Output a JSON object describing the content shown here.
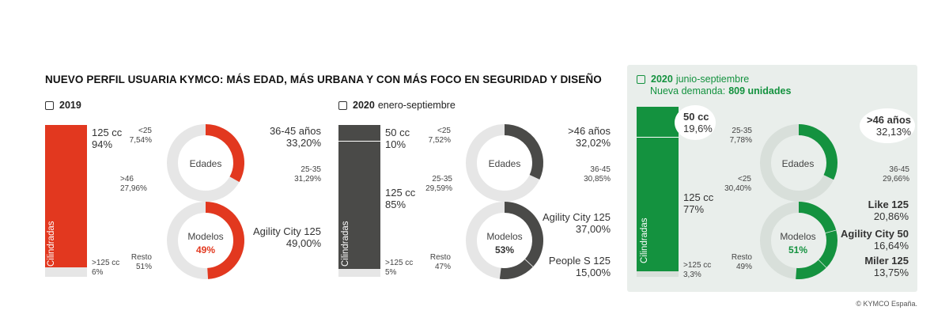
{
  "title": "NUEVO PERFIL USUARIA KYMCO: MÁS EDAD, MÁS URBANA Y CON MÁS FOCO EN SEGURIDAD Y DISEÑO",
  "source": "© KYMCO España.",
  "colors": {
    "p2019": "#e2381f",
    "p2020": "#4a4a48",
    "pnew": "#14923f",
    "track": "#e6e6e6",
    "trackNew": "#d8dfda"
  },
  "panels": [
    {
      "id": "p2019",
      "header_bold": "2019",
      "header_rest": "",
      "cilindradas_label": "Cilindradas",
      "cil": {
        "top_name": "125 cc",
        "top_pct": "94%",
        "top_value": 94,
        "bottom_name": ">125 cc",
        "bottom_pct": "6%",
        "bottom_value": 6
      },
      "edades": {
        "center": "Edades",
        "labels": [
          {
            "name": "<25",
            "pct": "7,54%"
          },
          {
            "name": "36-45 años",
            "pct": "33,20%"
          },
          {
            "name": ">46",
            "pct": "27,96%"
          },
          {
            "name": "25-35",
            "pct": "31,29%"
          }
        ],
        "highlight": 33.2
      },
      "modelos": {
        "center": "Modelos",
        "center_pct": "49%",
        "labels": [
          {
            "name": "Agility City 125",
            "pct": "49,00%"
          },
          {
            "name": "Resto",
            "pct": "51%"
          }
        ],
        "highlight": 49.0
      }
    },
    {
      "id": "p2020",
      "header_bold": "2020",
      "header_rest": "enero-septiembre",
      "cilindradas_label": "Cilindradas",
      "cil": {
        "top_name": "50 cc",
        "top_pct": "10%",
        "top_value": 10,
        "mid_name": "125 cc",
        "mid_pct": "85%",
        "mid_value": 85,
        "bottom_name": ">125 cc",
        "bottom_pct": "5%",
        "bottom_value": 5
      },
      "edades": {
        "center": "Edades",
        "labels": [
          {
            "name": "<25",
            "pct": "7,52%"
          },
          {
            "name": ">46 años",
            "pct": "32,02%"
          },
          {
            "name": "25-35",
            "pct": "29,59%"
          },
          {
            "name": "36-45",
            "pct": "30,85%"
          }
        ],
        "highlight": 32.02
      },
      "modelos": {
        "center": "Modelos",
        "center_pct": "53%",
        "labels": [
          {
            "name": "Agility City 125",
            "pct": "37,00%"
          },
          {
            "name": "People S 125",
            "pct": "15,00%"
          },
          {
            "name": "Resto",
            "pct": "47%"
          }
        ],
        "highlight": [
          37.0,
          15.0
        ]
      }
    },
    {
      "id": "pnew",
      "header_bold": "2020",
      "header_rest": "junio-septiembre",
      "header2_text": "Nueva demanda:",
      "header2_bold": "809 unidades",
      "cilindradas_label": "Cilindradas",
      "cil": {
        "top_name": "50 cc",
        "top_pct": "19,6%",
        "top_value": 19.6,
        "mid_name": "125 cc",
        "mid_pct": "77%",
        "mid_value": 77,
        "bottom_name": ">125 cc",
        "bottom_pct": "3,3%",
        "bottom_value": 3.3
      },
      "edades": {
        "center": "Edades",
        "labels": [
          {
            "name": "25-35",
            "pct": "7,78%"
          },
          {
            "name": ">46 años",
            "pct": "32,13%"
          },
          {
            "name": "<25",
            "pct": "30,40%"
          },
          {
            "name": "36-45",
            "pct": "29,66%"
          }
        ],
        "highlight": 32.13
      },
      "modelos": {
        "center": "Modelos",
        "center_pct": "51%",
        "labels": [
          {
            "name": "Like 125",
            "pct": "20,86%"
          },
          {
            "name": "Agility City 50",
            "pct": "16,64%"
          },
          {
            "name": "Miler 125",
            "pct": "13,75%"
          },
          {
            "name": "Resto",
            "pct": "49%"
          }
        ],
        "highlight": [
          20.86,
          16.64,
          13.75
        ]
      }
    }
  ],
  "chart_data": [
    {
      "type": "bar",
      "title": "2019 Cilindradas",
      "categories": [
        "125 cc",
        ">125 cc"
      ],
      "values": [
        94,
        6
      ]
    },
    {
      "type": "pie",
      "title": "2019 Edades",
      "categories": [
        "<25",
        "25-35",
        "36-45 años",
        ">46"
      ],
      "values": [
        7.54,
        31.29,
        33.2,
        27.96
      ]
    },
    {
      "type": "pie",
      "title": "2019 Modelos",
      "categories": [
        "Agility City 125",
        "Resto"
      ],
      "values": [
        49.0,
        51
      ]
    },
    {
      "type": "bar",
      "title": "2020 enero-septiembre Cilindradas",
      "categories": [
        "50 cc",
        "125 cc",
        ">125 cc"
      ],
      "values": [
        10,
        85,
        5
      ]
    },
    {
      "type": "pie",
      "title": "2020 enero-septiembre Edades",
      "categories": [
        "<25",
        "25-35",
        "36-45",
        ">46 años"
      ],
      "values": [
        7.52,
        29.59,
        30.85,
        32.02
      ]
    },
    {
      "type": "pie",
      "title": "2020 enero-septiembre Modelos",
      "categories": [
        "Agility City 125",
        "People S 125",
        "Resto"
      ],
      "values": [
        37.0,
        15.0,
        47
      ]
    },
    {
      "type": "bar",
      "title": "2020 junio-septiembre Cilindradas",
      "categories": [
        "50 cc",
        "125 cc",
        ">125 cc"
      ],
      "values": [
        19.6,
        77,
        3.3
      ]
    },
    {
      "type": "pie",
      "title": "2020 junio-septiembre Edades",
      "categories": [
        "25-35",
        "<25",
        "36-45",
        ">46 años"
      ],
      "values": [
        7.78,
        30.4,
        29.66,
        32.13
      ]
    },
    {
      "type": "pie",
      "title": "2020 junio-septiembre Modelos",
      "categories": [
        "Like 125",
        "Agility City 50",
        "Miler 125",
        "Resto"
      ],
      "values": [
        20.86,
        16.64,
        13.75,
        49
      ]
    }
  ]
}
